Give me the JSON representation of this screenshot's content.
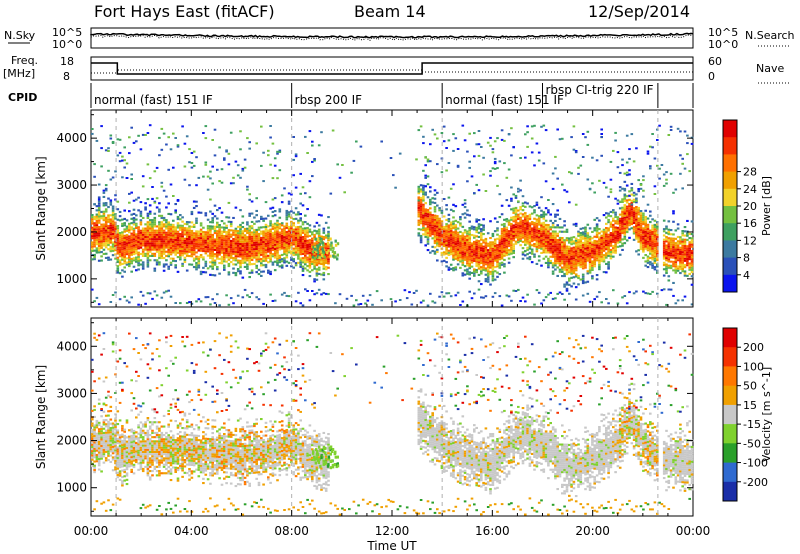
{
  "header": {
    "station": "Fort Hays East (fitACF)",
    "beam": "Beam 14",
    "date": "12/Sep/2014"
  },
  "top_strip": {
    "left_label": "N.Sky",
    "left_ticks": [
      "10^5",
      "10^0"
    ],
    "right_ticks": [
      "10^5",
      "10^0"
    ],
    "right_label": "N.Search"
  },
  "freq_strip": {
    "left_label_line1": "Freq.",
    "left_label_line2": "[MHz]",
    "left_ticks": [
      "18",
      "8"
    ],
    "right_ticks": [
      "60",
      "0"
    ],
    "right_label": "Nave"
  },
  "cpid": {
    "label": "CPID",
    "segments": [
      {
        "name": "normal (fast) 151 IF",
        "start_h": 0.0,
        "end_h": 8.0
      },
      {
        "name": "rbsp 200 IF",
        "start_h": 8.0,
        "end_h": 14.0
      },
      {
        "name": "normal (fast) 151 IF",
        "start_h": 14.0,
        "end_h": 18.0
      },
      {
        "name": "rbsp CI-trig 220 IF",
        "start_h": 18.0,
        "end_h": 22.6
      }
    ]
  },
  "chart_data": [
    {
      "type": "heatmap",
      "panel": "power",
      "ylabel": "Slant Range [km]",
      "xlim": [
        0,
        24
      ],
      "ylim": [
        400,
        4600
      ],
      "yticks": [
        1000,
        2000,
        3000,
        4000
      ],
      "colorbar": {
        "label": "Power [dB]",
        "ticks": [
          "4",
          "8",
          "12",
          "16",
          "20",
          "24",
          "28"
        ],
        "colors": [
          "#0a14ee",
          "#2a50b8",
          "#3c7aa0",
          "#3ea060",
          "#74c040",
          "#f2d22a",
          "#f0a000",
          "#ff7000",
          "#f53000",
          "#e00000"
        ]
      },
      "trace": {
        "times": [
          0.0,
          0.9,
          1.1,
          2.0,
          3.0,
          4.0,
          5.0,
          6.0,
          7.0,
          8.0,
          8.7,
          9.5,
          12.5,
          13.0,
          14.0,
          15.0,
          16.0,
          17.0,
          18.0,
          19.0,
          20.0,
          21.0,
          21.5,
          22.0,
          22.6,
          23.0,
          24.0
        ],
        "center_km": [
          1950,
          2000,
          1650,
          1800,
          1800,
          1750,
          1700,
          1650,
          1700,
          1900,
          1600,
          1500,
          null,
          2500,
          1900,
          1600,
          1450,
          2100,
          1900,
          1400,
          1550,
          1950,
          2500,
          1900,
          1700,
          1550,
          1500
        ]
      }
    },
    {
      "type": "heatmap",
      "panel": "velocity",
      "ylabel": "Slant Range [km]",
      "xlabel": "Time UT",
      "xlim": [
        0,
        24
      ],
      "ylim": [
        400,
        4600
      ],
      "yticks": [
        1000,
        2000,
        3000,
        4000
      ],
      "xticks": [
        "00:00",
        "04:00",
        "08:00",
        "12:00",
        "16:00",
        "20:00",
        "00:00"
      ],
      "colorbar": {
        "label": "Velocity [m s^-1]",
        "ticks": [
          "200",
          "100",
          "50",
          "15",
          "-15",
          "-50",
          "-100",
          "-200"
        ],
        "colors": [
          "#1a2ea8",
          "#2f6ad0",
          "#2aa02a",
          "#7fd12e",
          "#c8c8c8",
          "#f0a000",
          "#ff7800",
          "#f53200",
          "#e00000"
        ]
      }
    }
  ]
}
